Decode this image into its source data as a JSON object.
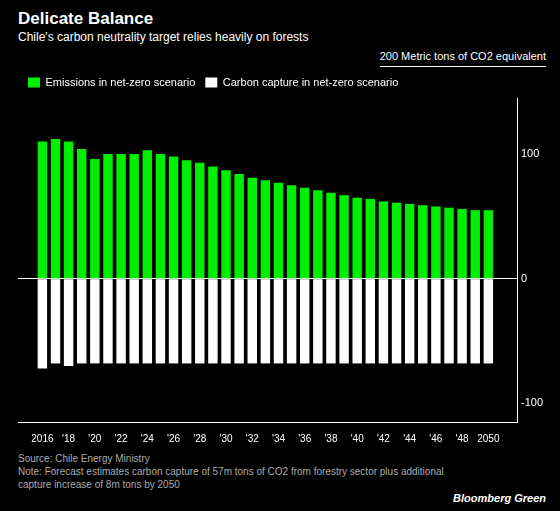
{
  "chart_data": {
    "type": "bar",
    "title": "Delicate Balance",
    "subtitle": "Chile's carbon neutrality target relies heavily on forests",
    "x": [
      2016,
      2017,
      2018,
      2019,
      2020,
      2021,
      2022,
      2023,
      2024,
      2025,
      2026,
      2027,
      2028,
      2029,
      2030,
      2031,
      2032,
      2033,
      2034,
      2035,
      2036,
      2037,
      2038,
      2039,
      2040,
      2041,
      2042,
      2043,
      2044,
      2045,
      2046,
      2047,
      2048,
      2049,
      2050
    ],
    "series": [
      {
        "name": "Emissions in net-zero scenario",
        "color": "#00ee00",
        "values": [
          110,
          112,
          110,
          104,
          96,
          100,
          100,
          100,
          103,
          100,
          98,
          95,
          93,
          90,
          87,
          84,
          81,
          79,
          77,
          75,
          73,
          71,
          69,
          67,
          65,
          64,
          62,
          61,
          60,
          59,
          58,
          57,
          56,
          55,
          55
        ]
      },
      {
        "name": "Carbon capture in net-zero scenario",
        "color": "#ffffff",
        "values": [
          -72,
          -68,
          -70,
          -68,
          -68,
          -68,
          -68,
          -68,
          -68,
          -68,
          -68,
          -68,
          -68,
          -68,
          -68,
          -68,
          -68,
          -68,
          -68,
          -68,
          -68,
          -68,
          -68,
          -68,
          -68,
          -68,
          -68,
          -68,
          -68,
          -68,
          -68,
          -68,
          -68,
          -68,
          -68
        ]
      }
    ],
    "xlim": [
      2015.2,
      2051.2
    ],
    "xticks": [
      2016,
      {
        "value": 2018,
        "label": "'18"
      },
      {
        "value": 2020,
        "label": "'20"
      },
      {
        "value": 2022,
        "label": "'22"
      },
      {
        "value": 2024,
        "label": "'24"
      },
      {
        "value": 2026,
        "label": "'26"
      },
      {
        "value": 2028,
        "label": "'28"
      },
      {
        "value": 2030,
        "label": "'30"
      },
      {
        "value": 2032,
        "label": "'32"
      },
      {
        "value": 2034,
        "label": "'34"
      },
      {
        "value": 2036,
        "label": "'36"
      },
      {
        "value": 2038,
        "label": "'38"
      },
      {
        "value": 2040,
        "label": "'40"
      },
      {
        "value": 2042,
        "label": "'42"
      },
      {
        "value": 2044,
        "label": "'44"
      },
      {
        "value": 2046,
        "label": "'46"
      },
      {
        "value": 2048,
        "label": "'48"
      },
      2050
    ],
    "ylim": [
      -115,
      145
    ],
    "yticks": [
      -100,
      0,
      100
    ],
    "stacked": true,
    "grid": false,
    "legend": "upper left",
    "annotations": [
      "200 Metric tons of CO2 equivalent",
      "Source: Chile Energy Ministry",
      "Note: Forecast estimates carbon capture of 57m tons of CO2 from forestry sector plus additional\ncapture increase of 8m tons by 2050",
      "Bloomberg Green"
    ]
  }
}
